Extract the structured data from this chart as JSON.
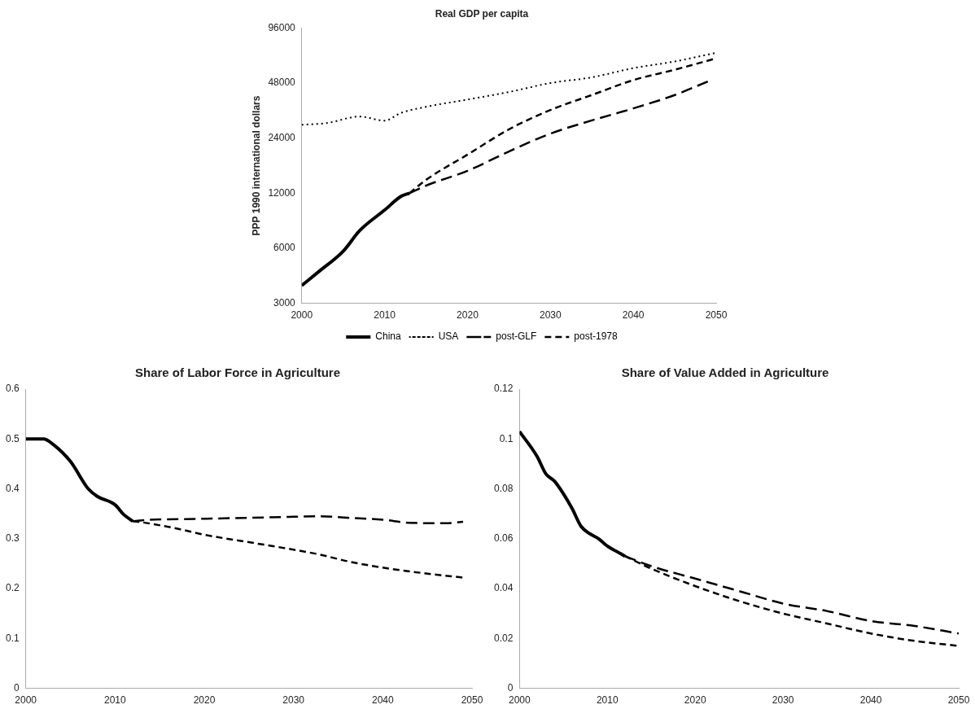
{
  "chart_data": [
    {
      "type": "line",
      "title": "Real GDP per capita",
      "ylabel": "PPP 1990 international dollars",
      "log": "y",
      "legend": "bottom",
      "grid": false,
      "xlim": [
        2000,
        2050
      ],
      "xticks": [
        2000,
        2010,
        2020,
        2030,
        2040,
        2050
      ],
      "ylim": [
        3000,
        96000
      ],
      "yticks": [
        3000,
        6000,
        12000,
        24000,
        48000,
        96000
      ],
      "series": [
        {
          "name": "China",
          "color": "#000000",
          "line_style": "solid",
          "x": [
            2000,
            2002,
            2005,
            2007,
            2010,
            2012,
            2013
          ],
          "values": [
            3750,
            4450,
            5780,
            7500,
            9700,
            11550,
            12000
          ]
        },
        {
          "name": "USA",
          "color": "#000000",
          "line_style": "dotted",
          "x": [
            2000,
            2003,
            2007,
            2010,
            2012,
            2015,
            2020,
            2025,
            2030,
            2035,
            2040,
            2045,
            2050
          ],
          "values": [
            28400,
            29000,
            31500,
            29900,
            33000,
            35600,
            39000,
            42900,
            48000,
            51600,
            57900,
            63000,
            70300
          ]
        },
        {
          "name": "post-GLF",
          "color": "#000000",
          "line_style": "dashed",
          "x": [
            2013,
            2015,
            2020,
            2025,
            2030,
            2035,
            2040,
            2045,
            2049
          ],
          "values": [
            12000,
            13200,
            15900,
            20300,
            25400,
            30000,
            34900,
            41300,
            49000
          ]
        },
        {
          "name": "post-1978",
          "color": "#000000",
          "line_style": "dashed",
          "x": [
            2013,
            2015,
            2020,
            2025,
            2030,
            2035,
            2040,
            2045,
            2050
          ],
          "values": [
            12000,
            14200,
            19500,
            26800,
            34200,
            41300,
            49800,
            56800,
            65500
          ]
        }
      ]
    },
    {
      "type": "line",
      "title": "Share of Labor Force in Agriculture",
      "grid": false,
      "xlim": [
        2000,
        2050
      ],
      "xticks": [
        2000,
        2010,
        2020,
        2030,
        2040,
        2050
      ],
      "ylim": [
        0,
        0.6
      ],
      "yticks": [
        0,
        0.1,
        0.2,
        0.3,
        0.4,
        0.5,
        0.6
      ],
      "series": [
        {
          "color": "#000000",
          "line_style": "solid",
          "x": [
            2000,
            2002,
            2003,
            2005,
            2007,
            2008,
            2010,
            2011,
            2012
          ],
          "values": [
            0.5,
            0.5,
            0.49,
            0.455,
            0.4,
            0.385,
            0.368,
            0.348,
            0.335
          ]
        },
        {
          "color": "#000000",
          "line_style": "dashed",
          "x": [
            2012,
            2013,
            2020,
            2025,
            2030,
            2033,
            2036,
            2040,
            2043,
            2047,
            2049
          ],
          "values": [
            0.335,
            0.337,
            0.34,
            0.342,
            0.344,
            0.345,
            0.342,
            0.338,
            0.332,
            0.331,
            0.334
          ]
        },
        {
          "color": "#000000",
          "line_style": "dashed",
          "x": [
            2012,
            2013,
            2017,
            2020,
            2025,
            2030,
            2033,
            2036,
            2040,
            2045,
            2049
          ],
          "values": [
            0.335,
            0.333,
            0.32,
            0.308,
            0.293,
            0.278,
            0.268,
            0.255,
            0.242,
            0.23,
            0.222
          ]
        }
      ]
    },
    {
      "type": "line",
      "title": "Share of Value Added in Agriculture",
      "grid": false,
      "xlim": [
        2000,
        2050
      ],
      "xticks": [
        2000,
        2010,
        2020,
        2030,
        2040,
        2050
      ],
      "ylim": [
        0,
        0.12
      ],
      "yticks": [
        0,
        0.02,
        0.04,
        0.06,
        0.08,
        0.1,
        0.12
      ],
      "series": [
        {
          "color": "#000000",
          "line_style": "solid",
          "x": [
            2000,
            2002,
            2003,
            2004,
            2005,
            2006,
            2007,
            2008,
            2009,
            2010,
            2011,
            2012
          ],
          "values": [
            0.103,
            0.093,
            0.086,
            0.083,
            0.078,
            0.072,
            0.065,
            0.062,
            0.06,
            0.057,
            0.055,
            0.053
          ]
        },
        {
          "color": "#000000",
          "line_style": "dashed",
          "x": [
            2012,
            2015,
            2020,
            2025,
            2030,
            2035,
            2040,
            2045,
            2050
          ],
          "values": [
            0.053,
            0.049,
            0.044,
            0.039,
            0.034,
            0.031,
            0.027,
            0.025,
            0.022
          ]
        },
        {
          "color": "#000000",
          "line_style": "dashed",
          "x": [
            2012,
            2015,
            2020,
            2025,
            2030,
            2035,
            2040,
            2045,
            2050
          ],
          "values": [
            0.053,
            0.048,
            0.041,
            0.035,
            0.03,
            0.026,
            0.022,
            0.019,
            0.017
          ]
        }
      ]
    }
  ]
}
